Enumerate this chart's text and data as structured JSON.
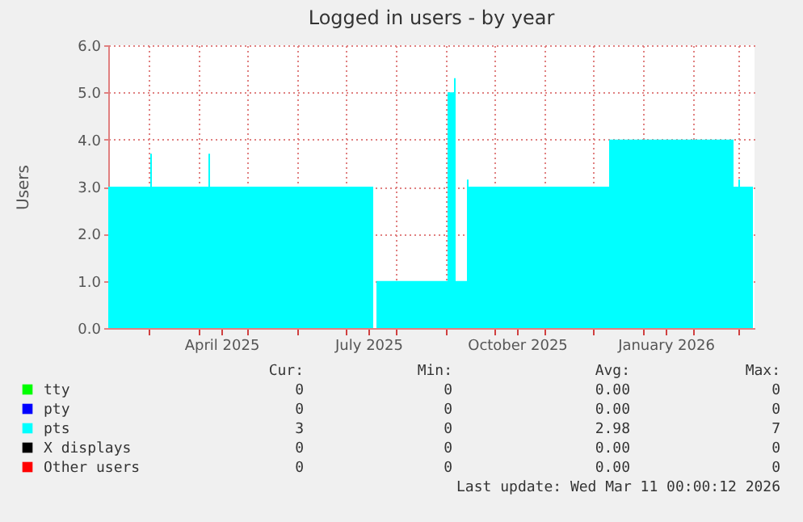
{
  "chart_data": {
    "type": "area",
    "title": "Logged in users - by year",
    "ylabel": "Users",
    "xlim": [
      "2025-02-04",
      "2026-03-11"
    ],
    "xticks": [
      {
        "value": "2025-03-01",
        "label": null
      },
      {
        "value": "2025-04-01",
        "label": null
      },
      {
        "value": "2025-04-15",
        "label": "April 2025"
      },
      {
        "value": "2025-05-01",
        "label": null
      },
      {
        "value": "2025-06-01",
        "label": null
      },
      {
        "value": "2025-07-01",
        "label": null
      },
      {
        "value": "2025-07-15",
        "label": "July 2025"
      },
      {
        "value": "2025-08-01",
        "label": null
      },
      {
        "value": "2025-09-01",
        "label": null
      },
      {
        "value": "2025-10-01",
        "label": null
      },
      {
        "value": "2025-10-15",
        "label": "October 2025"
      },
      {
        "value": "2025-11-01",
        "label": null
      },
      {
        "value": "2025-12-01",
        "label": null
      },
      {
        "value": "2026-01-01",
        "label": null
      },
      {
        "value": "2026-01-15",
        "label": "January 2026"
      },
      {
        "value": "2026-02-01",
        "label": null
      },
      {
        "value": "2026-03-01",
        "label": null
      }
    ],
    "ylim": [
      0,
      6
    ],
    "yticks": [
      {
        "value": 0,
        "label": "0.0"
      },
      {
        "value": 1,
        "label": "1.0"
      },
      {
        "value": 2,
        "label": "2.0"
      },
      {
        "value": 3,
        "label": "3.0"
      },
      {
        "value": 4,
        "label": "4.0"
      },
      {
        "value": 5,
        "label": "5.0"
      },
      {
        "value": 6,
        "label": "6.0"
      }
    ],
    "grid": true,
    "legend": "bottom",
    "series": [
      {
        "name": "tty",
        "color": "#00ff00"
      },
      {
        "name": "pty",
        "color": "#0000ff"
      },
      {
        "name": "X displays",
        "color": "#000000"
      },
      {
        "name": "Other users",
        "color": "#ff0000"
      },
      {
        "name": "pts",
        "color": "#00ffff",
        "x": [
          "2025-02-04",
          "2025-03-02",
          "2025-03-03",
          "2025-04-07",
          "2025-04-08",
          "2025-07-18",
          "2025-07-20",
          "2025-09-02",
          "2025-09-06",
          "2025-09-07",
          "2025-09-14",
          "2025-09-15",
          "2025-12-11",
          "2026-02-26",
          "2026-03-01",
          "2026-03-02",
          "2026-03-10"
        ],
        "values": [
          3.0,
          3.7,
          3.0,
          3.7,
          3.0,
          0,
          1.0,
          5.0,
          5.3,
          1.0,
          3.15,
          3.0,
          4.0,
          3.0,
          3.15,
          3.0,
          3.0
        ]
      }
    ],
    "annotations": [
      "Cur:",
      "Min:",
      "Avg:",
      "Max:",
      "0",
      "0",
      "0.00",
      "0",
      "0",
      "0",
      "0.00",
      "0",
      "3",
      "0",
      "2.98",
      "7",
      "0",
      "0",
      "0.00",
      "0",
      "0",
      "0",
      "0.00",
      "0",
      "Last update: Wed Mar 11 00:00:12 2026"
    ]
  }
}
